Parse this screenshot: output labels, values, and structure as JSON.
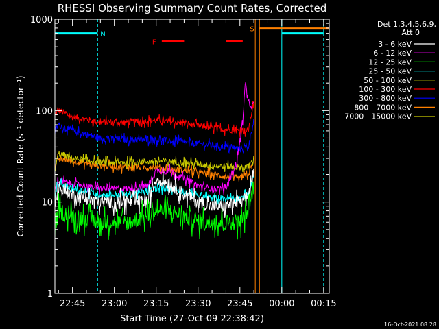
{
  "chart_data": {
    "type": "line",
    "title": "RHESSI Observing Summary Count Rates, Corrected",
    "xlabel": "Start Time (27-Oct-09 22:38:42)",
    "ylabel": "Corrected Count Rate (s⁻¹ detector⁻¹)",
    "yscale": "log",
    "ylim": [
      1,
      1000
    ],
    "xlim": [
      "22:38:42",
      "00:17:00"
    ],
    "x_ticks": [
      "22:45",
      "23:00",
      "23:15",
      "23:30",
      "23:45",
      "00:00",
      "00:15"
    ],
    "y_ticks": [
      "1",
      "10",
      "100",
      "1000"
    ],
    "legend_title": "Det 1,3,4,5,6,9,",
    "legend_subtitle": "Att 0",
    "legend_position": "right",
    "series": [
      {
        "name": "3 - 6 keV",
        "color": "#ffffff",
        "x": [
          "22:38:42",
          "22:40",
          "22:45",
          "22:55",
          "23:05",
          "23:12",
          "23:15",
          "23:20",
          "23:25",
          "23:30",
          "23:35",
          "23:40",
          "23:44",
          "23:46",
          "23:48",
          "23:50"
        ],
        "values": [
          10,
          14,
          12,
          10,
          10,
          10,
          18,
          16,
          12,
          10,
          9,
          9,
          10,
          10,
          12,
          22
        ]
      },
      {
        "name": "6 - 12 keV",
        "color": "#ff00ff",
        "x": [
          "22:38:42",
          "22:40",
          "22:45",
          "22:55",
          "23:05",
          "23:12",
          "23:15",
          "23:20",
          "23:25",
          "23:30",
          "23:35",
          "23:40",
          "23:42",
          "23:44",
          "23:46",
          "23:47",
          "23:48",
          "23:50"
        ],
        "values": [
          14,
          17,
          16,
          14,
          14,
          15,
          22,
          22,
          18,
          15,
          14,
          14,
          20,
          28,
          80,
          200,
          120,
          110
        ]
      },
      {
        "name": "12 - 25 keV",
        "color": "#00ff00",
        "x": [
          "22:38:42",
          "22:40",
          "22:45",
          "22:55",
          "23:05",
          "23:12",
          "23:15",
          "23:20",
          "23:25",
          "23:30",
          "23:35",
          "23:40",
          "23:45",
          "23:48",
          "23:50"
        ],
        "values": [
          5,
          8,
          7,
          6,
          6,
          7,
          8,
          8,
          7,
          6,
          6,
          6,
          6,
          8,
          15
        ]
      },
      {
        "name": "25 - 50 keV",
        "color": "#00ffff",
        "x": [
          "22:38:42",
          "22:40",
          "22:45",
          "22:55",
          "23:05",
          "23:12",
          "23:15",
          "23:20",
          "23:25",
          "23:30",
          "23:35",
          "23:40",
          "23:45",
          "23:48",
          "23:50"
        ],
        "values": [
          12,
          16,
          14,
          12,
          12,
          13,
          14,
          14,
          13,
          12,
          11,
          11,
          11,
          12,
          20
        ]
      },
      {
        "name": "50 - 100 keV",
        "color": "#c8c800",
        "x": [
          "22:38:42",
          "22:40",
          "22:45",
          "22:55",
          "23:05",
          "23:15",
          "23:25",
          "23:35",
          "23:45",
          "23:48",
          "23:50"
        ],
        "values": [
          22,
          34,
          30,
          27,
          27,
          28,
          27,
          25,
          24,
          24,
          30
        ]
      },
      {
        "name": "100 - 300 keV",
        "color": "#ff0000",
        "x": [
          "22:38:42",
          "22:40",
          "22:45",
          "22:55",
          "23:05",
          "23:15",
          "23:25",
          "23:35",
          "23:45",
          "23:48",
          "23:50"
        ],
        "values": [
          90,
          100,
          85,
          75,
          75,
          78,
          72,
          65,
          60,
          60,
          130
        ]
      },
      {
        "name": "300 - 800 keV",
        "color": "#0000ff",
        "x": [
          "22:38:42",
          "22:40",
          "22:45",
          "22:55",
          "23:05",
          "23:15",
          "23:25",
          "23:35",
          "23:45",
          "23:48",
          "23:50"
        ],
        "values": [
          60,
          70,
          60,
          50,
          48,
          48,
          45,
          42,
          38,
          40,
          80
        ]
      },
      {
        "name": "800 - 7000 keV",
        "color": "#ff8000",
        "x": [
          "22:38:42",
          "22:40",
          "22:45",
          "22:55",
          "23:05",
          "23:15",
          "23:25",
          "23:35",
          "23:45",
          "23:48",
          "23:50"
        ],
        "values": [
          24,
          30,
          28,
          25,
          24,
          24,
          22,
          20,
          18,
          20,
          28
        ]
      },
      {
        "name": "7000 - 15000 keV",
        "color": "#808000",
        "x": [],
        "values": []
      }
    ],
    "flag_bars": [
      {
        "label": "N",
        "color": "#00ffff",
        "x_start": "22:38:42",
        "x_end": "22:54:00",
        "level": 700
      },
      {
        "label": "",
        "color": "#00ffff",
        "x_start": "00:00:00",
        "x_end": "00:15:00",
        "level": 700
      },
      {
        "label": "F",
        "color": "#ff0000",
        "x_start": "23:17:00",
        "x_end": "23:25:00",
        "level": 570
      },
      {
        "label": "",
        "color": "#ff0000",
        "x_start": "23:40:00",
        "x_end": "23:46:00",
        "level": 570
      },
      {
        "label": "S",
        "color": "#ff8000",
        "x_start": "23:52:00",
        "x_end": "00:17:00",
        "level": 790
      }
    ],
    "vertical_markers": [
      {
        "x": "22:38:42",
        "color": "#00ffff",
        "style": "solid"
      },
      {
        "x": "22:54:00",
        "color": "#00ffff",
        "style": "dashed"
      },
      {
        "x": "23:50:30",
        "color": "#ff8000",
        "style": "solid"
      },
      {
        "x": "23:52:00",
        "color": "#ff8000",
        "style": "solid"
      },
      {
        "x": "00:00:00",
        "color": "#00ffff",
        "style": "solid"
      },
      {
        "x": "00:15:00",
        "color": "#00ffff",
        "style": "dashed"
      }
    ],
    "timestamp": "16-Oct-2021 08:28"
  }
}
